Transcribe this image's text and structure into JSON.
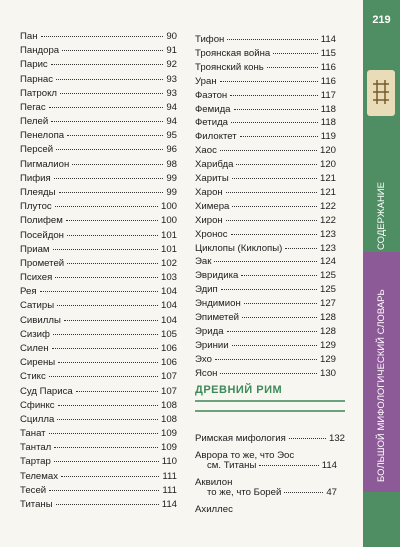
{
  "page_number": "219",
  "side": {
    "contents": "СОДЕРЖАНИЕ",
    "book_title": "БОЛЬШОЙ МИФОЛОГИЧЕСКИЙ СЛОВАРЬ"
  },
  "left": [
    {
      "name": "Пан",
      "page": 90
    },
    {
      "name": "Пандора",
      "page": 91
    },
    {
      "name": "Парис",
      "page": 92
    },
    {
      "name": "Парнас",
      "page": 93
    },
    {
      "name": "Патрокл",
      "page": 93
    },
    {
      "name": "Пегас",
      "page": 94
    },
    {
      "name": "Пелей",
      "page": 94
    },
    {
      "name": "Пенелопа",
      "page": 95
    },
    {
      "name": "Персей",
      "page": 96
    },
    {
      "name": "Пигмалион",
      "page": 98
    },
    {
      "name": "Пифия",
      "page": 99
    },
    {
      "name": "Плеяды",
      "page": 99
    },
    {
      "name": "Плутос",
      "page": 100
    },
    {
      "name": "Полифем",
      "page": 100
    },
    {
      "name": "Посейдон",
      "page": 101
    },
    {
      "name": "Приам",
      "page": 101
    },
    {
      "name": "Прометей",
      "page": 102
    },
    {
      "name": "Психея",
      "page": 103
    },
    {
      "name": "Рея",
      "page": 104
    },
    {
      "name": "Сатиры",
      "page": 104
    },
    {
      "name": "Сивиллы",
      "page": 104
    },
    {
      "name": "Сизиф",
      "page": 105
    },
    {
      "name": "Силен",
      "page": 106
    },
    {
      "name": "Сирены",
      "page": 106
    },
    {
      "name": "Стикс",
      "page": 107
    },
    {
      "name": "Суд Париса",
      "page": 107
    },
    {
      "name": "Сфинкс",
      "page": 108
    },
    {
      "name": "Сцилла",
      "page": 108
    },
    {
      "name": "Танат",
      "page": 109
    },
    {
      "name": "Тантал",
      "page": 109
    },
    {
      "name": "Тартар",
      "page": 110
    },
    {
      "name": "Телемах",
      "page": 111
    },
    {
      "name": "Тесей",
      "page": 111
    },
    {
      "name": "Титаны",
      "page": 114
    }
  ],
  "right": [
    {
      "name": "Тифон",
      "page": 114
    },
    {
      "name": "Троянская война",
      "page": 115
    },
    {
      "name": "Троянский конь",
      "page": 116
    },
    {
      "name": "Уран",
      "page": 116
    },
    {
      "name": "Фаэтон",
      "page": 117
    },
    {
      "name": "Фемида",
      "page": 118
    },
    {
      "name": "Фетида",
      "page": 118
    },
    {
      "name": "Филоктет",
      "page": 119
    },
    {
      "name": "Хаос",
      "page": 120
    },
    {
      "name": "Харибда",
      "page": 120
    },
    {
      "name": "Хариты",
      "page": 121
    },
    {
      "name": "Харон",
      "page": 121
    },
    {
      "name": "Химера",
      "page": 122
    },
    {
      "name": "Хирон",
      "page": 122
    },
    {
      "name": "Хронос",
      "page": 123
    },
    {
      "name": "Циклопы (Киклопы)",
      "page": 123
    },
    {
      "name": "Эак",
      "page": 124
    },
    {
      "name": "Эвридика",
      "page": 125
    },
    {
      "name": "Эдип",
      "page": 125
    },
    {
      "name": "Эндимион",
      "page": 127
    },
    {
      "name": "Эпиметей",
      "page": 128
    },
    {
      "name": "Эрида",
      "page": 128
    },
    {
      "name": "Эринии",
      "page": 129
    },
    {
      "name": "Эхо",
      "page": 129
    },
    {
      "name": "Ясон",
      "page": 130
    }
  ],
  "rome": {
    "heading": "ДРЕВНИЙ РИМ",
    "entries": [
      {
        "lines": [
          "Римская мифология"
        ],
        "page": 132
      },
      {
        "lines": [
          "Аврора то же, что Эос",
          "см. Титаны"
        ],
        "page": 114
      },
      {
        "lines": [
          "Аквилон",
          "то же, что Борей"
        ],
        "page": 47
      },
      {
        "lines": [
          "Ахиллес"
        ]
      }
    ]
  }
}
